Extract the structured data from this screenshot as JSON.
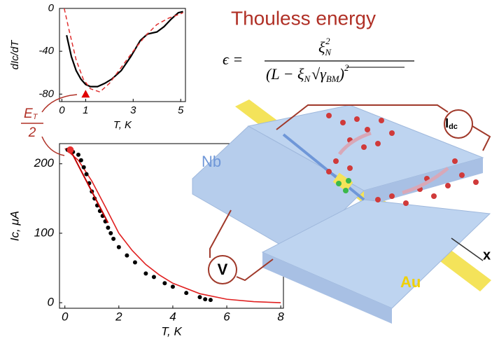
{
  "chart_data": [
    {
      "type": "line",
      "xlabel": "T, K",
      "ylabel": "dIc/dT",
      "xlim": [
        -0.1,
        5.2
      ],
      "ylim": [
        -87,
        0
      ],
      "xticks": [
        0,
        1,
        3,
        5
      ],
      "yticks": [
        0,
        -40,
        -80
      ],
      "series": [
        {
          "color": "#000000",
          "dash": false,
          "x": [
            0.2,
            0.4,
            0.6,
            0.8,
            1.0,
            1.2,
            1.5,
            1.8,
            2.1,
            2.5,
            2.9,
            3.3,
            3.6,
            4.0,
            4.3,
            4.6,
            4.9,
            5.1
          ],
          "values": [
            -25,
            -45,
            -58,
            -66,
            -71,
            -73,
            -73,
            -70,
            -66,
            -58,
            -45,
            -30,
            -24,
            -22,
            -17,
            -10,
            -4,
            -3
          ]
        },
        {
          "color": "#e03030",
          "dash": true,
          "x": [
            0.1,
            0.3,
            0.6,
            0.9,
            1.2,
            1.6,
            2.0,
            2.5,
            3.0,
            3.5,
            4.0,
            4.5,
            5.0,
            5.1
          ],
          "values": [
            0,
            -20,
            -48,
            -66,
            -75,
            -78,
            -70,
            -55,
            -40,
            -26,
            -15,
            -9,
            -5,
            -4
          ]
        }
      ],
      "marker": {
        "x": 1,
        "y": -80,
        "color": "#e00000"
      }
    },
    {
      "type": "scatter",
      "xlabel": "T, K",
      "ylabel": "Ic, μA",
      "xlim": [
        -0.2,
        8.1
      ],
      "ylim": [
        -8,
        229
      ],
      "xticks": [
        0,
        2,
        4,
        6,
        8
      ],
      "yticks": [
        0,
        100,
        200
      ],
      "color": "#000000",
      "x": [
        0.1,
        0.2,
        0.3,
        0.5,
        0.6,
        0.7,
        0.8,
        0.9,
        1.0,
        1.1,
        1.2,
        1.3,
        1.4,
        1.5,
        1.6,
        1.7,
        1.8,
        2.0,
        2.3,
        2.6,
        3.0,
        3.3,
        3.7,
        4.0,
        4.5,
        5.0,
        5.2,
        5.4
      ],
      "values": [
        220,
        218,
        217,
        213,
        205,
        195,
        185,
        172,
        160,
        150,
        140,
        132,
        125,
        117,
        108,
        100,
        92,
        80,
        68,
        58,
        42,
        37,
        28,
        23,
        14,
        8,
        5,
        4
      ],
      "fit": {
        "color": "#e02020",
        "x": [
          0,
          0.5,
          1,
          1.5,
          2,
          2.5,
          3,
          3.5,
          4,
          5,
          6,
          7,
          8
        ],
        "values": [
          222,
          205,
          175,
          138,
          100,
          75,
          55,
          40,
          28,
          13,
          5,
          1.5,
          0
        ]
      },
      "tangent": {
        "color": "#c00000",
        "x": [
          0.2,
          1.6
        ],
        "values": [
          220,
          115
        ]
      },
      "highlight": {
        "x": 0.2,
        "y": 220,
        "color": "#e83030"
      }
    }
  ],
  "annotation": {
    "symbol": "E",
    "sub": "T",
    "denominator": "2"
  },
  "diagram": {
    "title": "Thouless energy",
    "equation": {
      "lhs": "ϵ =",
      "num": "ξ",
      "num_sub": "N",
      "num_sup": "2",
      "den": "(L − ξ",
      "den_sub": "N",
      "root": "γ",
      "root_sub": "BM",
      "close": ")",
      "close_sup": "2"
    },
    "nb": "Nb",
    "au": "Au",
    "voltmeter": "V",
    "current": "I",
    "current_sub": "dc",
    "axis": "x"
  }
}
